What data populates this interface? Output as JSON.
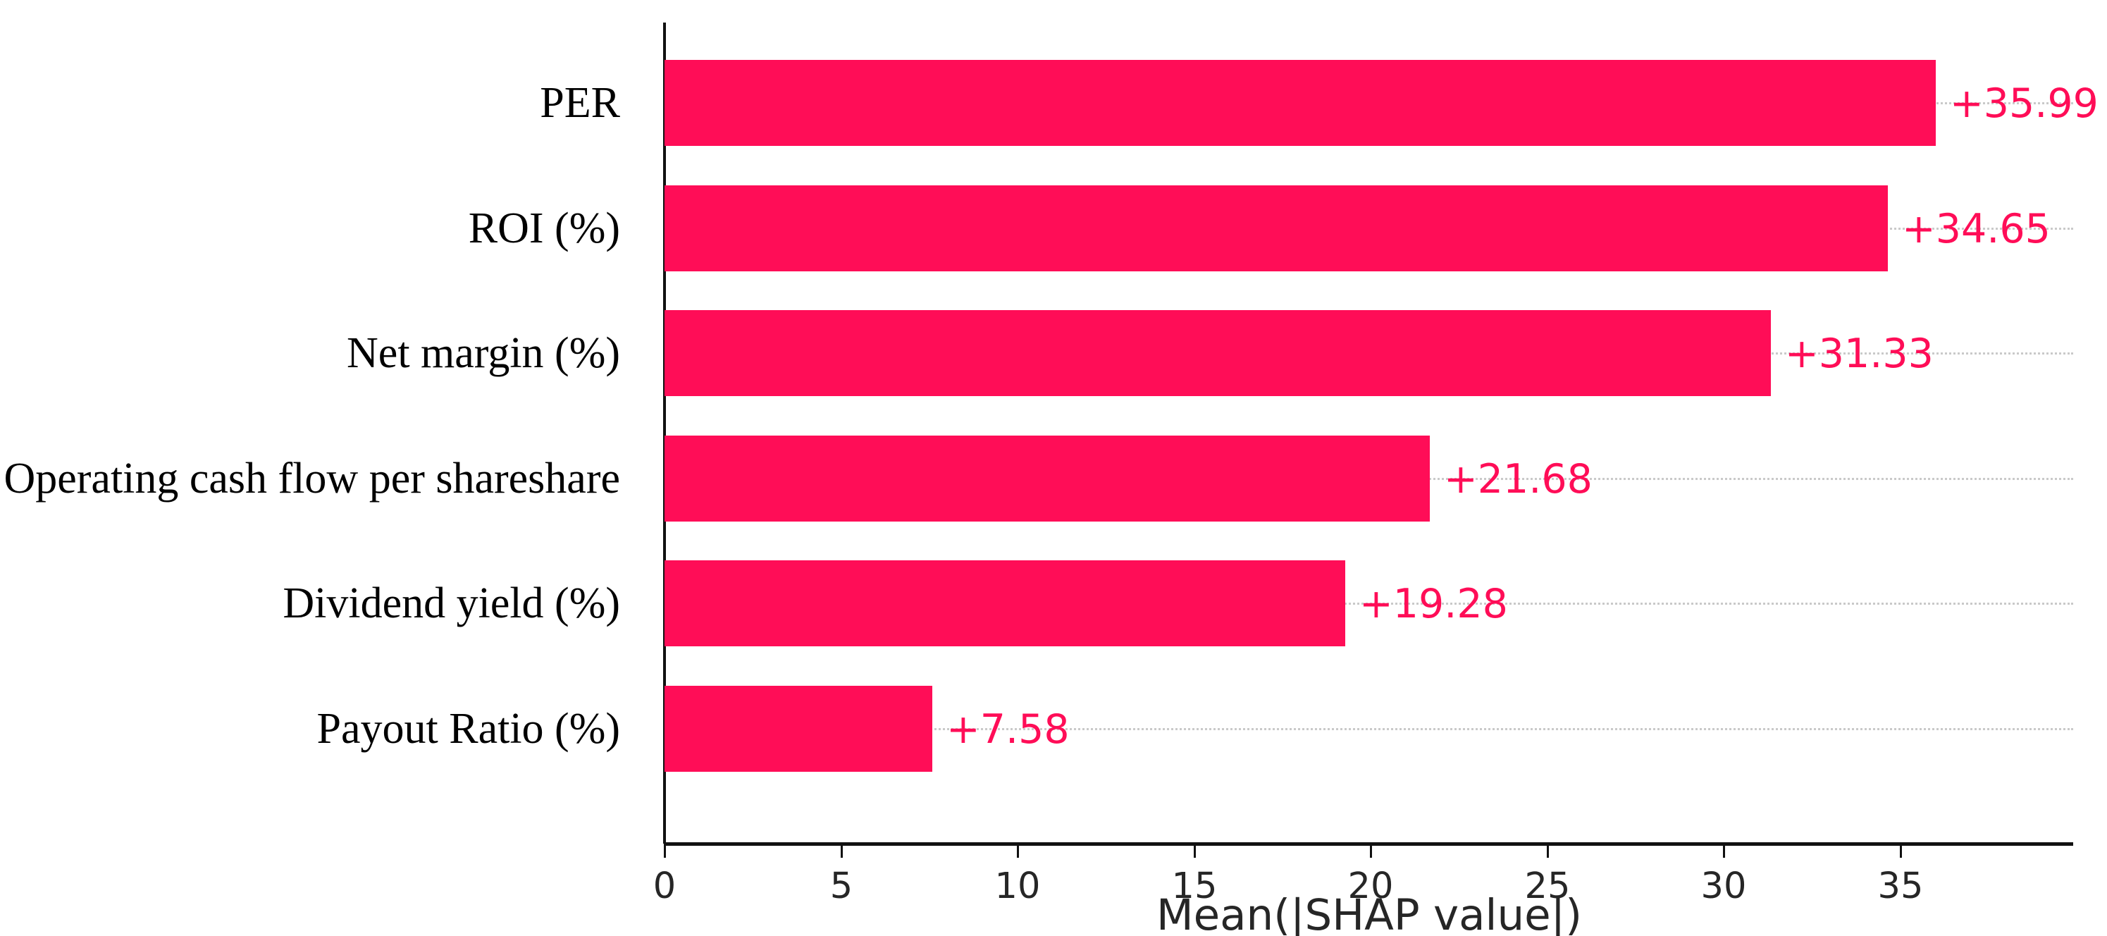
{
  "chart_data": {
    "type": "bar",
    "orientation": "horizontal",
    "title": "",
    "xlabel": "Mean(|SHAP value|)",
    "ylabel": "",
    "xlim": [
      0,
      39.9
    ],
    "x_ticks": [
      0,
      5,
      10,
      15,
      20,
      25,
      30,
      35
    ],
    "grid": "dotted horizontal line per category row",
    "legend": "none",
    "categories": [
      "PER",
      "ROI (%)",
      "Net margin (%)",
      "Operating cash flow per shareshare",
      "Dividend yield (%)",
      "Payout Ratio (%)"
    ],
    "values": [
      35.99,
      34.65,
      31.33,
      21.68,
      19.28,
      7.58
    ],
    "value_labels": [
      "+35.99",
      "+34.65",
      "+31.33",
      "+21.68",
      "+19.28",
      "+7.58"
    ]
  },
  "colors": {
    "bar": "#ff0d57",
    "value_label": "#ff0d57",
    "gridline": "#c9c9c9",
    "axis": "#111111",
    "tick_label": "#262626",
    "category_label": "#000000"
  }
}
